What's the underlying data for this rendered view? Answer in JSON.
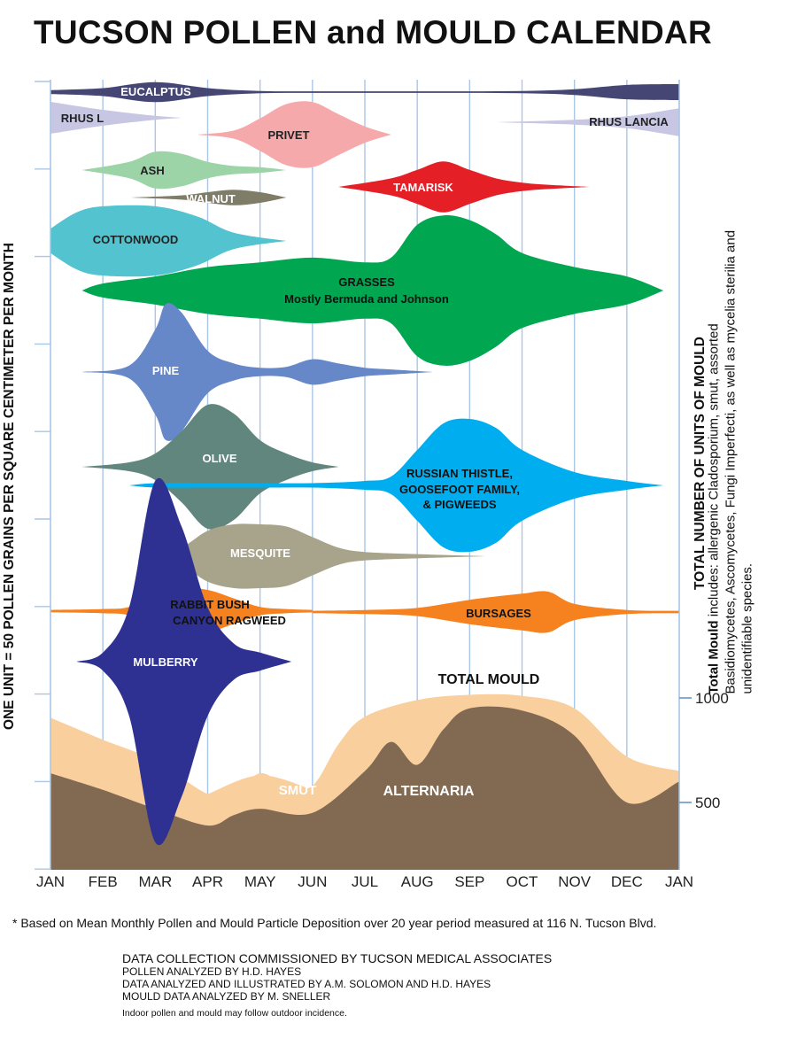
{
  "title": "TUCSON POLLEN and MOULD CALENDAR",
  "left_axis_label": "ONE UNIT = 50 POLLEN GRAINS PER SQUARE CENTIMETER PER MONTH",
  "right_axis_label": "TOTAL NUMBER OF UNITS OF MOULD",
  "mould_note": {
    "bold": "Total Mould",
    "text": " includes: allergenic Cladosporium, smut, assorted Basidiomycetes, Ascomycetes,  Fungi Imperfecti, as well as mycelia sterilia and unidentifiable species."
  },
  "footnote": "* Based on Mean Monthly Pollen and Mould Particle Deposition over 20 year period measured at 116 N. Tucson Blvd.",
  "credits": [
    "DATA COLLECTION COMMISSIONED BY TUCSON MEDICAL ASSOCIATES",
    "POLLEN ANALYZED BY H.D. HAYES",
    "DATA ANALYZED AND ILLUSTRATED BY A.M. SOLOMON AND H.D. HAYES",
    "MOULD DATA ANALYZED BY M. SNELLER",
    "Indoor pollen and mould may follow outdoor incidence."
  ],
  "chart_data": {
    "type": "area",
    "title": "TUCSON POLLEN and MOULD CALENDAR",
    "months": [
      "JAN",
      "FEB",
      "MAR",
      "APR",
      "MAY",
      "JUN",
      "JUL",
      "AUG",
      "SEP",
      "OCT",
      "NOV",
      "DEC",
      "JAN"
    ],
    "x_range": [
      0,
      12
    ],
    "mould_axis": {
      "label": "TOTAL NUMBER OF UNITS OF MOULD",
      "ticks": [
        500,
        1000
      ]
    },
    "pollen_scale": "ONE UNIT = 50 POLLEN GRAINS PER SQUARE CENTIMETER PER MONTH",
    "colors": {
      "total_mould": "#f9cf9e",
      "alternaria": "#826a52",
      "grid": "#a9c6e6"
    },
    "pollen_series": [
      {
        "name": "EUCALPTUS",
        "color": "#454673",
        "x": [
          0,
          1,
          2,
          3,
          4,
          5,
          6,
          7,
          8,
          9,
          10,
          11,
          12
        ],
        "values": [
          0.5,
          1,
          2.5,
          1,
          0.3,
          0.2,
          0.2,
          0.2,
          0.2,
          0.3,
          0.7,
          1.8,
          2
        ]
      },
      {
        "name": "RHUS L",
        "color": "#c7c6e3",
        "x": [
          0,
          1,
          2,
          2.5
        ],
        "values": [
          4,
          2,
          0.5,
          0
        ]
      },
      {
        "name": "RHUS LANCIA",
        "color": "#c7c6e3",
        "x": [
          8.5,
          10,
          11,
          12
        ],
        "values": [
          0,
          0.6,
          1.5,
          3.5
        ]
      },
      {
        "name": "PRIVET",
        "color": "#f6a9ab",
        "x": [
          2.8,
          3.5,
          4,
          4.5,
          5,
          5.5,
          6,
          6.5
        ],
        "values": [
          0,
          1,
          4,
          7.5,
          8,
          5,
          2,
          0
        ]
      },
      {
        "name": "ASH",
        "color": "#9cd4a8",
        "x": [
          0.6,
          1.5,
          2,
          2.5,
          3,
          3.5,
          4,
          4.5
        ],
        "values": [
          0,
          2,
          4.5,
          4,
          2,
          1,
          0.7,
          0
        ]
      },
      {
        "name": "WALNUT",
        "color": "#7f7d68",
        "x": [
          1.5,
          2.5,
          3,
          3.5,
          4,
          4.5
        ],
        "values": [
          0,
          0.6,
          1.5,
          2.2,
          1.5,
          0
        ]
      },
      {
        "name": "TAMARISK",
        "color": "#e41f26",
        "x": [
          5.5,
          6.5,
          7,
          7.5,
          8,
          8.5,
          9,
          9.5,
          10.3
        ],
        "values": [
          0,
          2,
          4,
          6,
          4,
          2,
          1,
          0.5,
          0
        ]
      },
      {
        "name": "COTTONWOOD",
        "color": "#53c3cf",
        "x": [
          0,
          0.5,
          1,
          2,
          2.8,
          3.5,
          4.5
        ],
        "values": [
          3,
          7,
          8.5,
          8.5,
          6,
          2,
          0
        ]
      },
      {
        "name": "GRASSES Mostly Bermuda and Johnson",
        "color": "#00a650",
        "x": [
          0.6,
          1,
          2,
          3,
          4,
          5,
          6,
          6.5,
          7,
          7.5,
          8,
          8.5,
          9,
          10,
          11,
          11.7
        ],
        "values": [
          0,
          1.5,
          3,
          5,
          6,
          7,
          6,
          7,
          14,
          16,
          15,
          12,
          8,
          5,
          3,
          0
        ]
      },
      {
        "name": "PINE",
        "color": "#6688c9",
        "x": [
          0.6,
          1.5,
          2,
          2.2,
          2.5,
          3,
          3.5,
          4,
          4.5,
          5,
          5.5,
          6,
          6.5,
          7.3
        ],
        "values": [
          0,
          1.5,
          10,
          16,
          14,
          5,
          2,
          1,
          1.2,
          3,
          2,
          1,
          0.6,
          0
        ]
      },
      {
        "name": "OLIVE",
        "color": "#61867d",
        "x": [
          0.6,
          1.5,
          2,
          2.5,
          3,
          3.5,
          4,
          4.5,
          5,
          5.5
        ],
        "values": [
          0,
          1,
          3,
          8,
          14,
          12,
          6,
          3,
          1,
          0
        ]
      },
      {
        "name": "RUSSIAN THISTLE, GOOSEFOOT FAMILY, & PIGWEEDS",
        "color": "#00aeef",
        "x": [
          1.5,
          2,
          3,
          4,
          5,
          6,
          6.5,
          7,
          7.5,
          8,
          8.5,
          9,
          10,
          11,
          11.7
        ],
        "values": [
          0,
          0.5,
          0.5,
          0.5,
          0.5,
          1,
          2,
          8,
          14,
          15,
          13,
          8,
          3,
          1,
          0
        ]
      },
      {
        "name": "MESQUITE",
        "color": "#a8a48b",
        "x": [
          2,
          2.5,
          3,
          3.5,
          4,
          4.5,
          5,
          5.5,
          6,
          7,
          8.3
        ],
        "values": [
          0,
          2,
          6,
          7.5,
          7.5,
          7,
          4.5,
          2,
          1,
          0.5,
          0
        ]
      },
      {
        "name": "RABBIT BUSH CANYON RAGWEED",
        "color": "#f6821f",
        "x": [
          0,
          1,
          1.5,
          2,
          2.5,
          3,
          3.5,
          4,
          4.5,
          5
        ],
        "values": [
          0.3,
          0.5,
          1,
          4,
          5.5,
          5,
          3,
          1,
          0.5,
          0.3
        ]
      },
      {
        "name": "BURSAGES",
        "color": "#f6821f",
        "x": [
          5,
          6,
          7,
          8,
          9,
          9.5,
          10,
          11,
          12
        ],
        "values": [
          0.3,
          0.5,
          1,
          3,
          4.5,
          5,
          2,
          0.5,
          0.3
        ]
      },
      {
        "name": "MULBERRY",
        "color": "#2e3192",
        "x": [
          0.5,
          1,
          1.5,
          2,
          2.5,
          3,
          3.5,
          4,
          4.6
        ],
        "values": [
          0,
          2,
          12,
          40,
          30,
          12,
          4,
          2,
          0
        ]
      }
    ],
    "mould_series": [
      {
        "name": "TOTAL MOULD",
        "x": [
          0,
          1,
          2,
          3,
          3.5,
          4,
          4.5,
          5,
          5.5,
          6,
          7,
          8,
          9,
          10,
          11,
          12
        ],
        "values": [
          905,
          800,
          700,
          540,
          540,
          640,
          580,
          580,
          780,
          910,
          990,
          1015,
          1010,
          950,
          720,
          650
        ]
      },
      {
        "name": "SMUT",
        "x": [
          3,
          4,
          5
        ],
        "values": [
          540,
          630,
          560
        ]
      },
      {
        "name": "ALTERNARIA",
        "x": [
          0,
          1,
          2,
          3,
          3.5,
          4,
          5,
          6,
          6.5,
          7,
          7.5,
          8,
          9,
          10,
          11,
          12
        ],
        "values": [
          640,
          560,
          470,
          390,
          440,
          470,
          450,
          650,
          790,
          680,
          850,
          950,
          940,
          820,
          500,
          600
        ]
      }
    ]
  }
}
